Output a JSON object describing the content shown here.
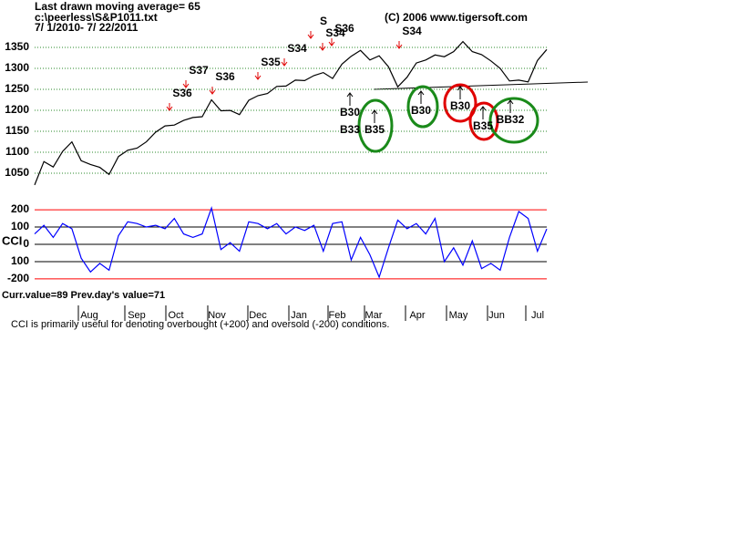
{
  "header": {
    "title": "Last drawn moving average= 65",
    "file": "c:\\peerless\\S&P1011.txt",
    "range": " 7/ 1/2010- 7/ 22/2011",
    "copyright": "(C) 2006  www.tigersoft.com"
  },
  "chart_data": [
    {
      "type": "line",
      "ylim": [
        1011,
        1424
      ],
      "yticks": [
        1050,
        1100,
        1150,
        1200,
        1250,
        1300,
        1350
      ],
      "grid": true,
      "color": "#000000",
      "values": [
        1022,
        1078,
        1065,
        1102,
        1125,
        1080,
        1071,
        1064,
        1047,
        1090,
        1105,
        1110,
        1125,
        1148,
        1163,
        1165,
        1176,
        1183,
        1185,
        1225,
        1199,
        1200,
        1190,
        1224,
        1235,
        1240,
        1257,
        1258,
        1272,
        1271,
        1283,
        1290,
        1276,
        1310,
        1329,
        1343,
        1320,
        1330,
        1304,
        1256,
        1279,
        1313,
        1320,
        1332,
        1328,
        1340,
        1364,
        1340,
        1333,
        1318,
        1300,
        1270,
        1272,
        1268,
        1319,
        1345
      ],
      "annotations": [
        {
          "text": "S36"
        },
        {
          "text": "S37"
        },
        {
          "text": "S36"
        },
        {
          "text": "S35"
        },
        {
          "text": "S34"
        },
        {
          "text": "S"
        },
        {
          "text": "S34"
        },
        {
          "text": "S36"
        },
        {
          "text": "S34"
        },
        {
          "text": "B30"
        },
        {
          "text": "B33"
        },
        {
          "text": "B35"
        },
        {
          "text": "B30"
        },
        {
          "text": "B30"
        },
        {
          "text": "B35"
        },
        {
          "text": "BB32"
        }
      ]
    },
    {
      "type": "line",
      "label": "CCI",
      "ylim": [
        -232,
        232
      ],
      "yticks": [
        200,
        100,
        0,
        {
          "value": -100,
          "label": "100"
        },
        -200
      ],
      "color": "#0000ff",
      "limit_color": "#ff0000",
      "values": [
        60,
        110,
        40,
        120,
        90,
        -80,
        -160,
        -110,
        -150,
        50,
        130,
        120,
        100,
        110,
        90,
        150,
        60,
        40,
        60,
        210,
        -30,
        10,
        -40,
        130,
        120,
        90,
        120,
        60,
        100,
        80,
        110,
        -40,
        120,
        130,
        -90,
        40,
        -60,
        -190,
        -20,
        140,
        90,
        120,
        60,
        150,
        -100,
        -20,
        -120,
        20,
        -140,
        -110,
        -150,
        40,
        190,
        150,
        -40,
        89
      ]
    }
  ],
  "x_axis": {
    "categories": [
      "Aug",
      "Sep",
      "Oct",
      "Nov",
      "Dec",
      "Jan",
      "Feb",
      "Mar",
      "Apr",
      "May",
      "Jun",
      "Jul"
    ]
  },
  "footer": {
    "current": "Curr.value=89 Prev.day's value=71",
    "note": "CCI is primarily useful for denoting overbought (+200) and oversold (-200) conditions."
  }
}
